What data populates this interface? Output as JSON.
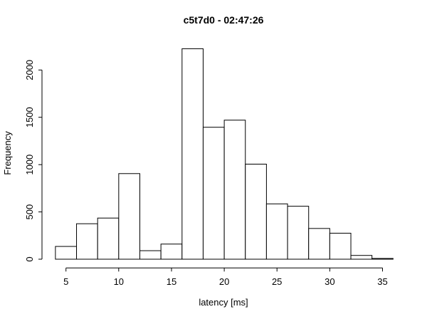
{
  "chart_data": {
    "type": "bar",
    "subtype": "histogram",
    "title": "c5t7d0 - 02:47:26",
    "xlabel": "latency [ms]",
    "ylabel": "Frequency",
    "x_ticks": [
      5,
      10,
      15,
      20,
      25,
      30,
      35
    ],
    "y_ticks": [
      0,
      500,
      1000,
      1500,
      2000
    ],
    "xlim": [
      4,
      36
    ],
    "ylim": [
      0,
      2250
    ],
    "bin_width": 2,
    "bins": [
      {
        "from": 4,
        "to": 6,
        "count": 135
      },
      {
        "from": 6,
        "to": 8,
        "count": 375
      },
      {
        "from": 8,
        "to": 10,
        "count": 435
      },
      {
        "from": 10,
        "to": 12,
        "count": 905
      },
      {
        "from": 12,
        "to": 14,
        "count": 90
      },
      {
        "from": 14,
        "to": 16,
        "count": 160
      },
      {
        "from": 16,
        "to": 18,
        "count": 2225
      },
      {
        "from": 18,
        "to": 20,
        "count": 1395
      },
      {
        "from": 20,
        "to": 22,
        "count": 1470
      },
      {
        "from": 22,
        "to": 24,
        "count": 1005
      },
      {
        "from": 24,
        "to": 26,
        "count": 585
      },
      {
        "from": 26,
        "to": 28,
        "count": 560
      },
      {
        "from": 28,
        "to": 30,
        "count": 325
      },
      {
        "from": 30,
        "to": 32,
        "count": 275
      },
      {
        "from": 32,
        "to": 34,
        "count": 40
      },
      {
        "from": 34,
        "to": 36,
        "count": 8
      }
    ],
    "grid": false,
    "legend": null,
    "colors": {
      "background": "#ffffff",
      "bar_fill": "#ffffff",
      "bar_stroke": "#000000",
      "axis": "#000000",
      "text": "#000000"
    }
  }
}
